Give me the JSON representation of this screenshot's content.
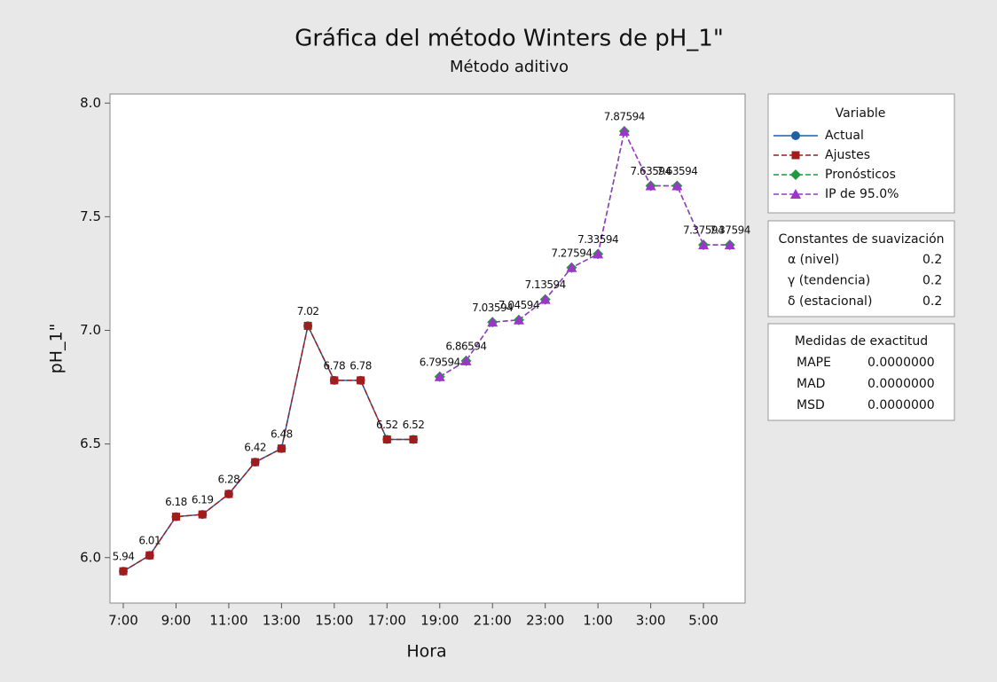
{
  "chart_data": {
    "type": "line",
    "title": "Gráfica del método Winters de pH_1\"",
    "subtitle": "Método aditivo",
    "x_label": "Hora",
    "y_label": "pH_1\"",
    "categories": [
      "7:00",
      null,
      "9:00",
      null,
      "11:00",
      null,
      "13:00",
      null,
      "15:00",
      null,
      "17:00",
      null,
      "19:00",
      null,
      "21:00",
      null,
      "23:00",
      null,
      "1:00",
      null,
      "3:00",
      null,
      "5:00",
      null
    ],
    "ylim": [
      5.8,
      8.04
    ],
    "yticks": [
      {
        "value": 6,
        "label": "6.0"
      },
      {
        "value": 6.5,
        "label": "6.5"
      },
      {
        "value": 7,
        "label": "7.0"
      },
      {
        "value": 7.5,
        "label": "7.5"
      },
      {
        "value": 8,
        "label": "8.0"
      }
    ],
    "legend_title": "Variable",
    "series": [
      {
        "name": "Actual",
        "color": "#1f5fa8",
        "linestyle": "solid",
        "marker": "circle",
        "data_labels": true,
        "values": [
          5.94,
          6.01,
          6.18,
          6.19,
          6.28,
          6.42,
          6.48,
          7.02,
          6.78,
          6.78,
          6.52,
          6.52,
          null,
          null,
          null,
          null,
          null,
          null,
          null,
          null,
          null,
          null,
          null,
          null
        ]
      },
      {
        "name": "Ajustes",
        "color": "#a31c1c",
        "linestyle": "dashed",
        "marker": "square",
        "data_labels": false,
        "values": [
          5.94,
          6.01,
          6.18,
          6.19,
          6.28,
          6.42,
          6.48,
          7.02,
          6.78,
          6.78,
          6.52,
          6.52,
          null,
          null,
          null,
          null,
          null,
          null,
          null,
          null,
          null,
          null,
          null,
          null
        ]
      },
      {
        "name": "Pronósticos",
        "color": "#1f9a3e",
        "linestyle": "dashed",
        "marker": "diamond",
        "data_labels": true,
        "values": [
          null,
          null,
          null,
          null,
          null,
          null,
          null,
          null,
          null,
          null,
          null,
          null,
          6.79594,
          6.86594,
          7.03594,
          7.04594,
          7.13594,
          7.27594,
          7.33594,
          7.87594,
          7.63594,
          7.63594,
          7.37594,
          7.37594
        ]
      },
      {
        "name": "IP de 95.0%",
        "color": "#9b36c9",
        "linestyle": "dashed",
        "marker": "triangle",
        "data_labels": false,
        "values": [
          null,
          null,
          null,
          null,
          null,
          null,
          null,
          null,
          null,
          null,
          null,
          null,
          6.79594,
          6.86594,
          7.03594,
          7.04594,
          7.13594,
          7.27594,
          7.33594,
          7.87594,
          7.63594,
          7.63594,
          7.37594,
          7.37594
        ]
      }
    ],
    "smoothing": {
      "title": "Constantes de suavización",
      "rows": [
        {
          "label": "α (nivel)",
          "value": 0.2
        },
        {
          "label": "γ (tendencia)",
          "value": 0.2
        },
        {
          "label": "δ (estacional)",
          "value": 0.2
        }
      ]
    },
    "accuracy": {
      "title": "Medidas de exactitud",
      "rows": [
        {
          "label": "MAPE",
          "value": "0.0000000"
        },
        {
          "label": "MAD",
          "value": "0.0000000"
        },
        {
          "label": "MSD",
          "value": "0.0000000"
        }
      ]
    }
  }
}
